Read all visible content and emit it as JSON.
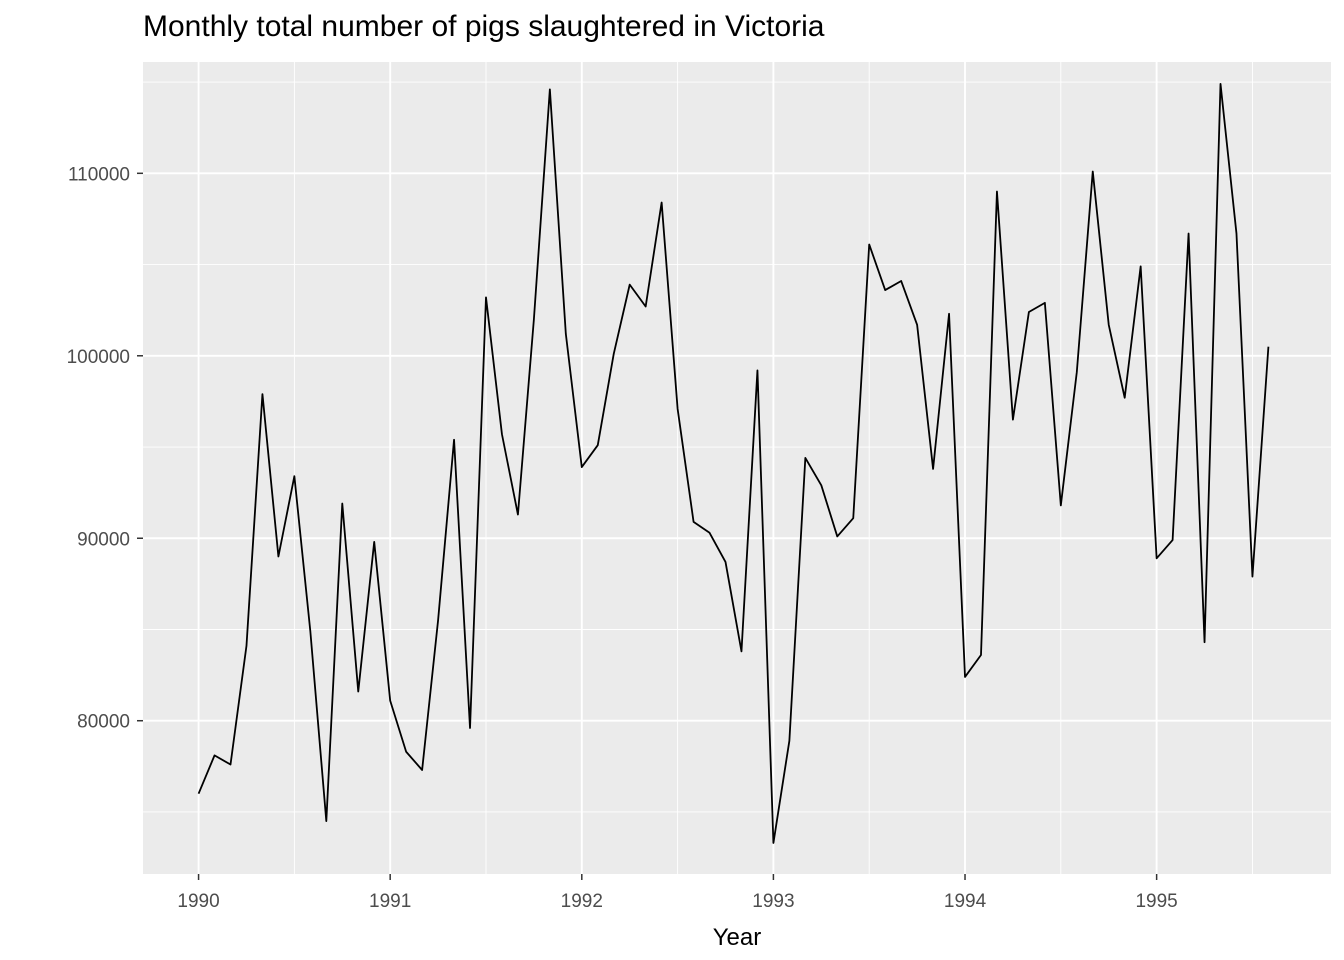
{
  "chart_data": {
    "type": "line",
    "title": "Monthly total number of pigs slaughtered in Victoria",
    "xlabel": "Year",
    "ylabel": "",
    "x_start_year": 1990,
    "x_start_month": 1,
    "xlim": [
      1989.71,
      1995.91
    ],
    "ylim": [
      71600,
      116100
    ],
    "x_ticks": [
      1990,
      1991,
      1992,
      1993,
      1994,
      1995
    ],
    "x_tick_labels": [
      "1990",
      "1991",
      "1992",
      "1993",
      "1994",
      "1995"
    ],
    "y_ticks": [
      80000,
      90000,
      100000,
      110000
    ],
    "y_tick_labels": [
      "80000",
      "90000",
      "100000",
      "110000"
    ],
    "grid": true,
    "colors": {
      "panel": "#ebebeb",
      "grid": "#ffffff",
      "line": "#000000"
    },
    "series": [
      {
        "values": [
          76000,
          78100,
          77600,
          84100,
          97900,
          89000,
          93400,
          84900,
          74500,
          91900,
          81600,
          89800,
          81100,
          78300,
          77300,
          85500,
          95400,
          79600,
          103200,
          95700,
          91300,
          102000,
          114600,
          101200,
          93900,
          95100,
          100100,
          103900,
          102700,
          108400,
          97100,
          90900,
          90300,
          88700,
          83800,
          99200,
          73300,
          78900,
          94400,
          92900,
          90100,
          91100,
          106100,
          103600,
          104100,
          101700,
          93800,
          102300,
          82400,
          83600,
          109000,
          96500,
          102400,
          102900,
          91800,
          99100,
          110100,
          101700,
          97700,
          104900,
          88900,
          89900,
          106700,
          84300,
          114900,
          106700,
          87900,
          100500
        ]
      }
    ]
  }
}
